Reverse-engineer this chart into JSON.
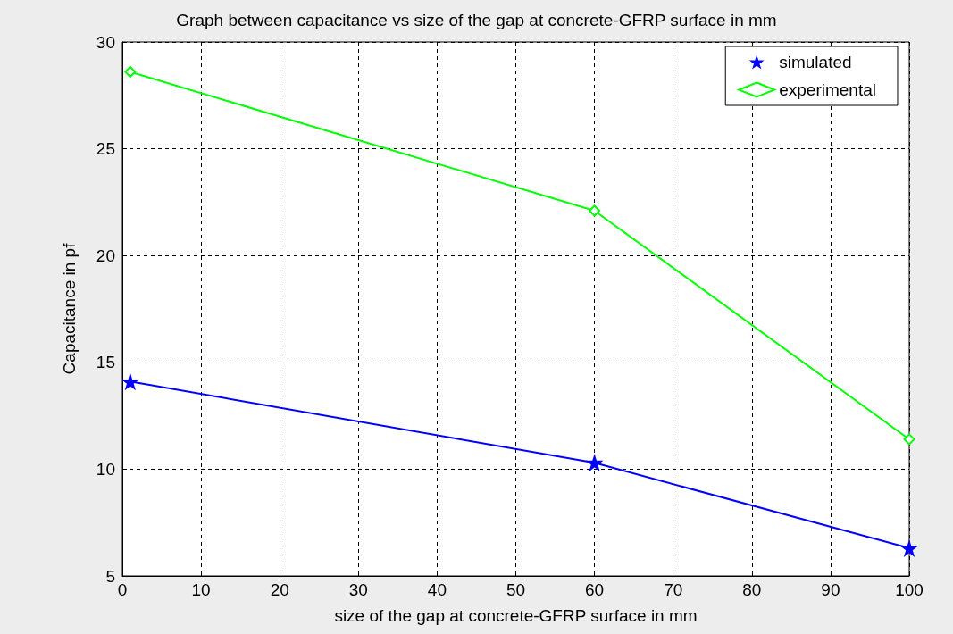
{
  "chart_data": {
    "type": "line",
    "title": "Graph between capacitance vs size of the gap at concrete-GFRP surface in mm",
    "xlabel": "size of the gap at concrete-GFRP surface in mm",
    "ylabel": "Capacitance in pf",
    "x": [
      1,
      60,
      100
    ],
    "series": [
      {
        "name": "simulated",
        "color": "#0000ff",
        "marker": "star",
        "values": [
          14.1,
          10.3,
          6.3
        ]
      },
      {
        "name": "experimental",
        "color": "#00ff00",
        "marker": "diamond",
        "values": [
          28.6,
          22.1,
          11.4
        ]
      }
    ],
    "xlim": [
      0,
      100
    ],
    "xticks": [
      0,
      10,
      20,
      30,
      40,
      50,
      60,
      70,
      80,
      90,
      100
    ],
    "ylim": [
      5,
      30
    ],
    "yticks": [
      5,
      10,
      15,
      20,
      25,
      30
    ],
    "grid": true,
    "line_style": "solid",
    "legend": "top right"
  }
}
